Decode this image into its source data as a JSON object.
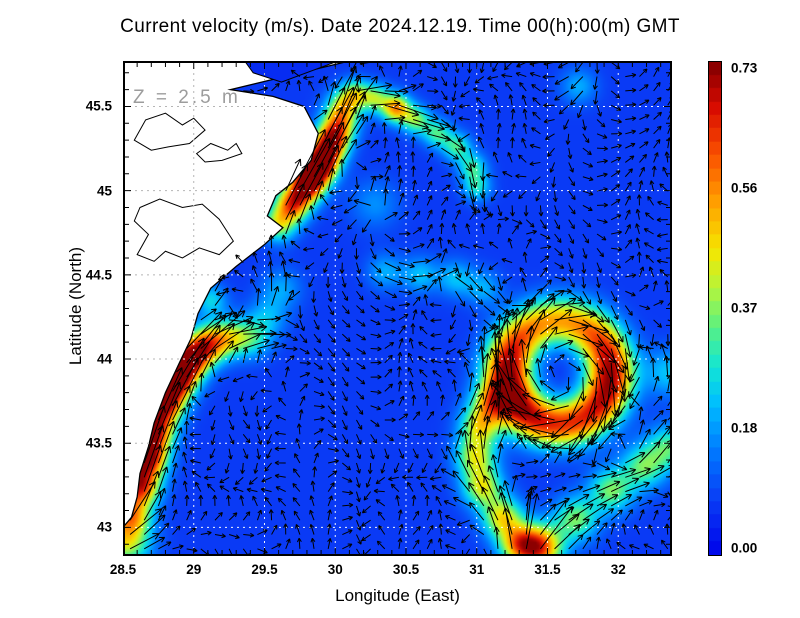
{
  "title": "Current velocity (m/s). Date 2024.12.19. Time 00(h):00(m) GMT",
  "annotation": {
    "text": "Z = 2.5 m",
    "color": "#9c9c9c"
  },
  "axes": {
    "x": {
      "label": "Longitude (East)",
      "ticks": [
        {
          "label": "28.5",
          "value": 28.5
        },
        {
          "label": "29",
          "value": 29
        },
        {
          "label": "29.5",
          "value": 29.5
        },
        {
          "label": "30",
          "value": 30
        },
        {
          "label": "30.5",
          "value": 30.5
        },
        {
          "label": "31",
          "value": 31
        },
        {
          "label": "31.5",
          "value": 31.5
        },
        {
          "label": "32",
          "value": 32
        }
      ]
    },
    "y": {
      "label": "Latitude (North)",
      "ticks": [
        {
          "label": "45.5",
          "value": 45.5
        },
        {
          "label": "45",
          "value": 45
        },
        {
          "label": "44.5",
          "value": 44.5
        },
        {
          "label": "44",
          "value": 44
        },
        {
          "label": "43.5",
          "value": 43.5
        },
        {
          "label": "43",
          "value": 43
        }
      ]
    }
  },
  "colorbar": {
    "vmin": 0,
    "vmax": 0.73,
    "labels": [
      {
        "text": "0.73",
        "value": 0.73
      },
      {
        "text": "0.56",
        "value": 0.5475
      },
      {
        "text": "0.37",
        "value": 0.365
      },
      {
        "text": "0.18",
        "value": 0.1825
      },
      {
        "text": "0.00",
        "value": 0.0
      }
    ]
  },
  "chart_data": {
    "type": "heatmap",
    "subtype": "ocean-current-vector-field",
    "title": "Current velocity (m/s). Date 2024.12.19. Time 00(h):00(m) GMT",
    "xlabel": "Longitude (East)",
    "ylabel": "Latitude (North)",
    "units": "m/s",
    "depth_annotation": "Z = 2.5 m",
    "lon_range": [
      28.5,
      32.38
    ],
    "lat_range": [
      42.83,
      45.77
    ],
    "gridline_interval": 0.5,
    "vmax": 0.73,
    "base_speed": 0.07,
    "lat_aspect": 1.19,
    "arrow_grid": {
      "dlon": 0.1,
      "dlat": 0.085
    },
    "arrow_scale": 68,
    "colormap": [
      [
        0.0,
        [
          0,
          10,
          235
        ]
      ],
      [
        0.1,
        [
          10,
          60,
          245
        ]
      ],
      [
        0.2,
        [
          0,
          120,
          255
        ]
      ],
      [
        0.3,
        [
          0,
          190,
          255
        ]
      ],
      [
        0.38,
        [
          20,
          230,
          210
        ]
      ],
      [
        0.46,
        [
          90,
          240,
          130
        ]
      ],
      [
        0.54,
        [
          180,
          245,
          60
        ]
      ],
      [
        0.62,
        [
          245,
          230,
          0
        ]
      ],
      [
        0.72,
        [
          255,
          160,
          0
        ]
      ],
      [
        0.82,
        [
          250,
          80,
          0
        ]
      ],
      [
        0.92,
        [
          215,
          10,
          0
        ]
      ],
      [
        1.0,
        [
          140,
          0,
          0
        ]
      ]
    ],
    "jets": [
      {
        "name": "west-coastal-jet",
        "sigma": 0.095,
        "path": [
          [
            28.56,
            43.08
          ],
          [
            28.62,
            43.25
          ],
          [
            28.67,
            43.42
          ],
          [
            28.72,
            43.58
          ],
          [
            28.79,
            43.74
          ],
          [
            28.87,
            43.88
          ],
          [
            28.97,
            44.0
          ],
          [
            29.1,
            44.09
          ],
          [
            29.26,
            44.13
          ],
          [
            29.42,
            44.12
          ]
        ],
        "amps": [
          0.38,
          0.56,
          0.66,
          0.58,
          0.62,
          0.7,
          0.6,
          0.44,
          0.28,
          0.18
        ]
      },
      {
        "name": "danube-jet",
        "sigma": 0.085,
        "path": [
          [
            29.6,
            44.8
          ],
          [
            29.7,
            44.92
          ],
          [
            29.8,
            45.04
          ],
          [
            29.89,
            45.15
          ],
          [
            29.96,
            45.27
          ],
          [
            30.02,
            45.38
          ],
          [
            30.06,
            45.5
          ]
        ],
        "amps": [
          0.32,
          0.5,
          0.68,
          0.72,
          0.56,
          0.4,
          0.32
        ]
      },
      {
        "name": "north-meander-arc",
        "sigma": 0.07,
        "path": [
          [
            30.14,
            45.58
          ],
          [
            30.28,
            45.55
          ],
          [
            30.43,
            45.49
          ],
          [
            30.57,
            45.42
          ],
          [
            30.72,
            45.34
          ],
          [
            30.86,
            45.26
          ],
          [
            30.97,
            45.14
          ],
          [
            31.0,
            45.02
          ]
        ],
        "amps": [
          0.26,
          0.28,
          0.46,
          0.28,
          0.24,
          0.24,
          0.22,
          0.2
        ]
      },
      {
        "name": "east-band-44.5",
        "sigma": 0.09,
        "path": [
          [
            30.35,
            44.52
          ],
          [
            30.6,
            44.5
          ],
          [
            30.85,
            44.48
          ],
          [
            31.05,
            44.42
          ]
        ],
        "amps": [
          0.13,
          0.15,
          0.15,
          0.13
        ]
      },
      {
        "name": "eddy-feed-band-west",
        "sigma": 0.1,
        "path": [
          [
            31.3,
            42.9
          ],
          [
            31.18,
            43.06
          ],
          [
            31.04,
            43.24
          ],
          [
            30.99,
            43.42
          ],
          [
            31.02,
            43.6
          ],
          [
            31.1,
            43.74
          ]
        ],
        "amps": [
          0.4,
          0.36,
          0.34,
          0.32,
          0.32,
          0.28
        ]
      },
      {
        "name": "bottom-band-east",
        "sigma": 0.11,
        "path": [
          [
            31.45,
            42.88
          ],
          [
            31.7,
            43.05
          ],
          [
            31.95,
            43.22
          ],
          [
            32.18,
            43.36
          ],
          [
            32.36,
            43.48
          ]
        ],
        "amps": [
          0.5,
          0.28,
          0.28,
          0.26,
          0.24
        ]
      }
    ],
    "blobs": [
      {
        "lon": 28.52,
        "lat": 42.92,
        "amp": 0.36,
        "sig": 0.12,
        "dir": 25
      },
      {
        "lon": 29.12,
        "lat": 44.35,
        "amp": 0.18,
        "sig": 0.08,
        "dir": 80
      },
      {
        "lon": 28.62,
        "lat": 44.18,
        "amp": 0.15,
        "sig": 0.07,
        "dir": 70
      },
      {
        "lon": 29.52,
        "lat": 44.25,
        "amp": 0.13,
        "sig": 0.1,
        "dir": 50
      },
      {
        "lon": 29.62,
        "lat": 44.42,
        "amp": 0.12,
        "sig": 0.1,
        "dir": 55
      },
      {
        "lon": 32.36,
        "lat": 43.92,
        "amp": 0.16,
        "sig": 0.12,
        "dir": 95
      },
      {
        "lon": 31.72,
        "lat": 45.62,
        "amp": 0.13,
        "sig": 0.09,
        "dir": 210
      },
      {
        "lon": 30.28,
        "lat": 44.92,
        "amp": 0.1,
        "sig": 0.12,
        "dir": 140
      }
    ],
    "eddy": {
      "name": "anticyclonic-eddy",
      "rotation": "clockwise",
      "center": [
        31.58,
        43.92
      ],
      "radius": 0.36,
      "sigma": 0.12,
      "base_amp": 0.4,
      "boosts": [
        {
          "angle": 185,
          "amp": 0.24
        },
        {
          "angle": 0,
          "amp": 0.22
        },
        {
          "angle": 230,
          "amp": 0.1
        },
        {
          "angle": 315,
          "amp": 0.06
        }
      ]
    },
    "land": [
      [
        28.5,
        45.77
      ],
      [
        30.1,
        45.77
      ],
      [
        29.26,
        45.6
      ],
      [
        29.56,
        45.56
      ],
      [
        29.78,
        45.5
      ],
      [
        29.88,
        45.34
      ],
      [
        29.83,
        45.18
      ],
      [
        29.7,
        45.05
      ],
      [
        29.58,
        44.97
      ],
      [
        29.52,
        44.85
      ],
      [
        29.63,
        44.78
      ],
      [
        29.5,
        44.68
      ],
      [
        29.3,
        44.55
      ],
      [
        29.12,
        44.42
      ],
      [
        29.03,
        44.27
      ],
      [
        28.98,
        44.12
      ],
      [
        28.9,
        43.98
      ],
      [
        28.8,
        43.8
      ],
      [
        28.72,
        43.62
      ],
      [
        28.68,
        43.48
      ],
      [
        28.62,
        43.32
      ],
      [
        28.6,
        43.18
      ],
      [
        28.56,
        43.06
      ],
      [
        28.5,
        43.0
      ]
    ],
    "lagoon": [
      [
        29.36,
        45.77
      ],
      [
        30.02,
        45.77
      ],
      [
        29.62,
        45.645
      ],
      [
        29.42,
        45.7
      ]
    ],
    "lakes": [
      [
        [
          28.58,
          45.3
        ],
        [
          28.66,
          45.42
        ],
        [
          28.8,
          45.46
        ],
        [
          28.92,
          45.39
        ],
        [
          29.0,
          45.43
        ],
        [
          29.08,
          45.36
        ],
        [
          28.97,
          45.28
        ],
        [
          28.82,
          45.26
        ],
        [
          28.7,
          45.24
        ]
      ],
      [
        [
          28.62,
          44.9
        ],
        [
          28.76,
          44.95
        ],
        [
          28.92,
          44.9
        ],
        [
          29.06,
          44.92
        ],
        [
          29.18,
          44.83
        ],
        [
          29.28,
          44.7
        ],
        [
          29.18,
          44.62
        ],
        [
          29.04,
          44.66
        ],
        [
          28.92,
          44.6
        ],
        [
          28.8,
          44.64
        ],
        [
          28.72,
          44.58
        ],
        [
          28.6,
          44.62
        ],
        [
          28.68,
          44.74
        ],
        [
          28.58,
          44.82
        ]
      ],
      [
        [
          29.02,
          45.22
        ],
        [
          29.12,
          45.28
        ],
        [
          29.24,
          45.24
        ],
        [
          29.3,
          45.28
        ],
        [
          29.34,
          45.22
        ],
        [
          29.2,
          45.18
        ],
        [
          29.08,
          45.17
        ]
      ]
    ]
  }
}
